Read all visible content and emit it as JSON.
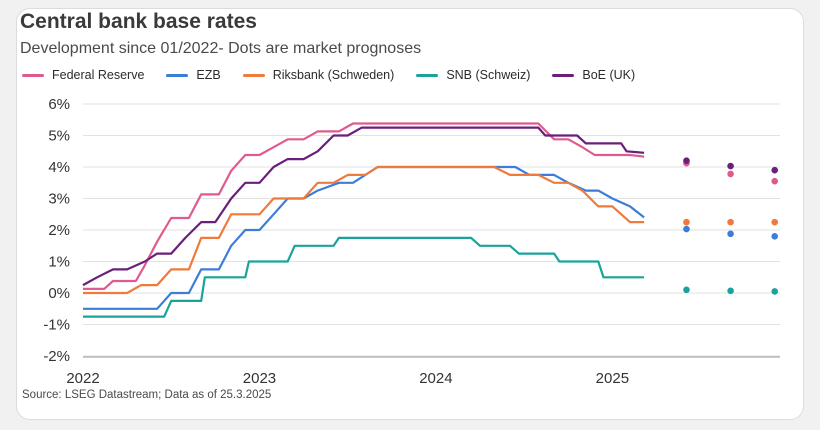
{
  "header": {
    "title": "Central bank base rates",
    "subtitle": "Development since 01/2022- Dots are market prognoses"
  },
  "footer": {
    "source": "Source: LSEG Datastream; Data as of 25.3.2025"
  },
  "chart_data": {
    "type": "line",
    "title": "Central bank base rates",
    "subtitle": "Development since 01/2022- Dots are market prognoses",
    "xlabel": "",
    "ylabel": "",
    "x_ticks": [
      "2022",
      "2023",
      "2024",
      "2025"
    ],
    "y_ticks": [
      "6%",
      "5%",
      "4%",
      "3%",
      "2%",
      "1%",
      "0%",
      "-1%",
      "-2%"
    ],
    "ylim": [
      -2,
      6
    ],
    "xlim": [
      2022.0,
      2025.95
    ],
    "grid": "horizontal",
    "legend": "top-left",
    "series": [
      {
        "name": "Federal Reserve",
        "color": "#e05a8f",
        "points": [
          [
            2022.0,
            0.13
          ],
          [
            2022.12,
            0.13
          ],
          [
            2022.17,
            0.38
          ],
          [
            2022.3,
            0.38
          ],
          [
            2022.35,
            0.88
          ],
          [
            2022.42,
            1.63
          ],
          [
            2022.5,
            2.38
          ],
          [
            2022.6,
            2.38
          ],
          [
            2022.67,
            3.13
          ],
          [
            2022.77,
            3.13
          ],
          [
            2022.84,
            3.88
          ],
          [
            2022.92,
            4.38
          ],
          [
            2023.0,
            4.38
          ],
          [
            2023.08,
            4.63
          ],
          [
            2023.16,
            4.88
          ],
          [
            2023.25,
            4.88
          ],
          [
            2023.33,
            5.13
          ],
          [
            2023.45,
            5.13
          ],
          [
            2023.53,
            5.38
          ],
          [
            2024.58,
            5.38
          ],
          [
            2024.67,
            4.88
          ],
          [
            2024.75,
            4.88
          ],
          [
            2024.83,
            4.63
          ],
          [
            2024.9,
            4.38
          ],
          [
            2025.0,
            4.38
          ],
          [
            2025.1,
            4.38
          ],
          [
            2025.18,
            4.33
          ]
        ],
        "forecast": [
          [
            2025.42,
            4.12
          ],
          [
            2025.67,
            3.78
          ],
          [
            2025.92,
            3.55
          ]
        ]
      },
      {
        "name": "EZB",
        "color": "#3b7dd8",
        "points": [
          [
            2022.0,
            -0.5
          ],
          [
            2022.42,
            -0.5
          ],
          [
            2022.5,
            0.0
          ],
          [
            2022.6,
            0.0
          ],
          [
            2022.67,
            0.75
          ],
          [
            2022.77,
            0.75
          ],
          [
            2022.84,
            1.5
          ],
          [
            2022.92,
            2.0
          ],
          [
            2023.0,
            2.0
          ],
          [
            2023.08,
            2.5
          ],
          [
            2023.16,
            3.0
          ],
          [
            2023.25,
            3.0
          ],
          [
            2023.33,
            3.25
          ],
          [
            2023.45,
            3.5
          ],
          [
            2023.53,
            3.5
          ],
          [
            2023.67,
            4.0
          ],
          [
            2024.45,
            4.0
          ],
          [
            2024.53,
            3.75
          ],
          [
            2024.67,
            3.75
          ],
          [
            2024.75,
            3.5
          ],
          [
            2024.85,
            3.25
          ],
          [
            2024.92,
            3.25
          ],
          [
            2025.0,
            3.0
          ],
          [
            2025.1,
            2.75
          ],
          [
            2025.18,
            2.4
          ]
        ],
        "forecast": [
          [
            2025.42,
            2.03
          ],
          [
            2025.67,
            1.88
          ],
          [
            2025.92,
            1.8
          ]
        ]
      },
      {
        "name": "Riksbank (Schweden)",
        "color": "#ef7a3b",
        "points": [
          [
            2022.0,
            0.0
          ],
          [
            2022.25,
            0.0
          ],
          [
            2022.33,
            0.25
          ],
          [
            2022.42,
            0.25
          ],
          [
            2022.5,
            0.75
          ],
          [
            2022.6,
            0.75
          ],
          [
            2022.67,
            1.75
          ],
          [
            2022.77,
            1.75
          ],
          [
            2022.84,
            2.5
          ],
          [
            2023.0,
            2.5
          ],
          [
            2023.08,
            3.0
          ],
          [
            2023.25,
            3.0
          ],
          [
            2023.33,
            3.5
          ],
          [
            2023.42,
            3.5
          ],
          [
            2023.5,
            3.75
          ],
          [
            2023.6,
            3.75
          ],
          [
            2023.67,
            4.0
          ],
          [
            2024.33,
            4.0
          ],
          [
            2024.42,
            3.75
          ],
          [
            2024.58,
            3.75
          ],
          [
            2024.67,
            3.5
          ],
          [
            2024.75,
            3.5
          ],
          [
            2024.83,
            3.25
          ],
          [
            2024.92,
            2.75
          ],
          [
            2025.0,
            2.75
          ],
          [
            2025.1,
            2.25
          ],
          [
            2025.18,
            2.25
          ]
        ],
        "forecast": [
          [
            2025.42,
            2.25
          ],
          [
            2025.67,
            2.25
          ],
          [
            2025.92,
            2.25
          ]
        ]
      },
      {
        "name": "SNB (Schweiz)",
        "color": "#1aa39a",
        "points": [
          [
            2022.0,
            -0.75
          ],
          [
            2022.46,
            -0.75
          ],
          [
            2022.5,
            -0.25
          ],
          [
            2022.67,
            -0.25
          ],
          [
            2022.69,
            0.5
          ],
          [
            2022.92,
            0.5
          ],
          [
            2022.94,
            1.0
          ],
          [
            2023.16,
            1.0
          ],
          [
            2023.2,
            1.5
          ],
          [
            2023.42,
            1.5
          ],
          [
            2023.45,
            1.75
          ],
          [
            2024.2,
            1.75
          ],
          [
            2024.25,
            1.5
          ],
          [
            2024.42,
            1.5
          ],
          [
            2024.47,
            1.25
          ],
          [
            2024.67,
            1.25
          ],
          [
            2024.7,
            1.0
          ],
          [
            2024.92,
            1.0
          ],
          [
            2024.95,
            0.5
          ],
          [
            2025.18,
            0.5
          ]
        ],
        "forecast": [
          [
            2025.42,
            0.1
          ],
          [
            2025.67,
            0.07
          ],
          [
            2025.92,
            0.05
          ]
        ]
      },
      {
        "name": "BoE (UK)",
        "color": "#6a1f7a",
        "points": [
          [
            2022.0,
            0.25
          ],
          [
            2022.08,
            0.5
          ],
          [
            2022.17,
            0.75
          ],
          [
            2022.25,
            0.75
          ],
          [
            2022.35,
            1.0
          ],
          [
            2022.42,
            1.25
          ],
          [
            2022.5,
            1.25
          ],
          [
            2022.58,
            1.75
          ],
          [
            2022.67,
            2.25
          ],
          [
            2022.75,
            2.25
          ],
          [
            2022.84,
            3.0
          ],
          [
            2022.92,
            3.5
          ],
          [
            2023.0,
            3.5
          ],
          [
            2023.08,
            4.0
          ],
          [
            2023.16,
            4.25
          ],
          [
            2023.25,
            4.25
          ],
          [
            2023.33,
            4.5
          ],
          [
            2023.42,
            5.0
          ],
          [
            2023.5,
            5.0
          ],
          [
            2023.58,
            5.25
          ],
          [
            2024.58,
            5.25
          ],
          [
            2024.62,
            5.0
          ],
          [
            2024.8,
            5.0
          ],
          [
            2024.85,
            4.75
          ],
          [
            2025.05,
            4.75
          ],
          [
            2025.08,
            4.5
          ],
          [
            2025.18,
            4.45
          ]
        ],
        "forecast": [
          [
            2025.42,
            4.2
          ],
          [
            2025.67,
            4.03
          ],
          [
            2025.92,
            3.9
          ]
        ]
      }
    ]
  }
}
